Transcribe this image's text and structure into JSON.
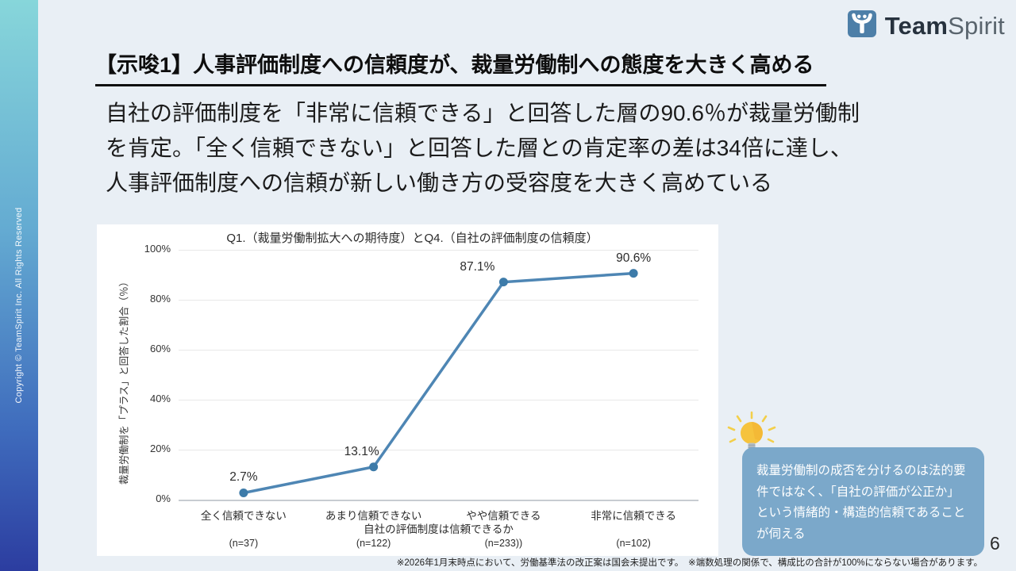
{
  "sidebar": {
    "copyright": "Copyright © TeamSpirit Inc. All Rights Reserved"
  },
  "logo": {
    "team": "Team",
    "spirit": "Spirit",
    "mark_color": "#4d7fa8"
  },
  "header": {
    "title": "【示唆1】人事評価制度への信頼度が、裁量労働制への態度を大きく高める"
  },
  "lead": {
    "lines": [
      "自社の評価制度を「非常に信頼できる」と回答した層の90.6％が裁量労働制",
      "を肯定。「全く信頼できない」と回答した層との肯定率の差は34倍に達し、",
      "人事評価制度への信頼が新しい働き方の受容度を大きく高めている"
    ]
  },
  "chart_data": {
    "type": "line",
    "title": "Q1.（裁量労働制拡大への期待度）とQ4.（自社の評価制度の信頼度）",
    "categories": [
      "全く信頼できない",
      "あまり信頼できない",
      "やや信頼できる",
      "非常に信頼できる"
    ],
    "values": [
      2.7,
      13.1,
      87.1,
      90.6
    ],
    "point_labels": [
      "2.7%",
      "13.1%",
      "87.1%",
      "90.6%"
    ],
    "n_labels": [
      "(n=37)",
      "(n=122)",
      "(n=233))",
      "(n=102)"
    ],
    "xlabel": "自社の評価制度は信頼できるか",
    "ylabel": "裁量労働制を「プラス」と回答した割合（％）",
    "ylim": [
      0,
      100
    ],
    "yticks": [
      0,
      20,
      40,
      60,
      80,
      100
    ],
    "ytick_labels": [
      "0%",
      "20%",
      "40%",
      "60%",
      "80%",
      "100%"
    ],
    "grid": true,
    "legend": "none",
    "line_color": "#4e86b4",
    "marker_color": "#3d7ba9"
  },
  "callout": {
    "text": "裁量労働制の成否を分けるのは法的要件ではなく、「自社の評価が公正か」という情緒的・構造的信頼であることが伺える",
    "bg_color": "#7ba8ca"
  },
  "footnote": {
    "text": "※2026年1月末時点において、労働基準法の改正案は国会未提出です。　※端数処理の関係で、構成比の合計が100%にならない場合があります。"
  },
  "page_number": "6"
}
